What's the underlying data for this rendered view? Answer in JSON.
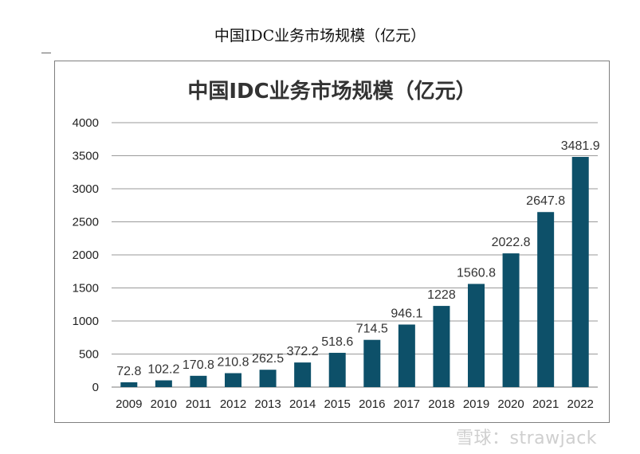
{
  "page": {
    "doc_title": "中国IDC业务市场规模（亿元）",
    "watermark": "雪球：strawjack"
  },
  "colors": {
    "bar": "#0d5069",
    "grid": "#9a9a9a"
  },
  "chart_data": {
    "type": "bar",
    "title": "中国IDC业务市场规模（亿元）",
    "categories": [
      "2009",
      "2010",
      "2011",
      "2012",
      "2013",
      "2014",
      "2015",
      "2016",
      "2017",
      "2018",
      "2019",
      "2020",
      "2021",
      "2022"
    ],
    "values": [
      72.8,
      102.2,
      170.8,
      210.8,
      262.5,
      372.2,
      518.6,
      714.5,
      946.1,
      1228,
      1560.8,
      2022.8,
      2647.8,
      3481.9
    ],
    "value_labels": [
      "72.8",
      "102.2",
      "170.8",
      "210.8",
      "262.5",
      "372.2",
      "518.6",
      "714.5",
      "946.1",
      "1228",
      "1560.8",
      "2022.8",
      "2647.8",
      "3481.9"
    ],
    "yticks": [
      "0",
      "500",
      "1000",
      "1500",
      "2000",
      "2500",
      "3000",
      "3500",
      "4000"
    ],
    "ylim": [
      0,
      4000
    ],
    "xlabel": "",
    "ylabel": "",
    "grid": true,
    "legend": "none"
  }
}
